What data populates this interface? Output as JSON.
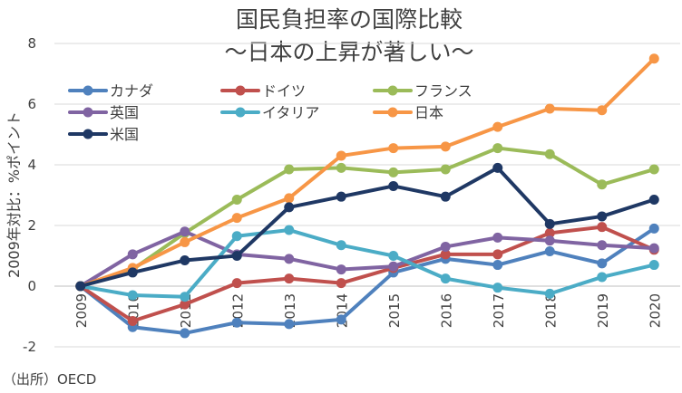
{
  "chart_data": {
    "type": "line",
    "title": "国民負担率の国際比較",
    "subtitle": "〜日本の上昇が著しい〜",
    "xlabel": "",
    "ylabel": "2009年対比：%ポイント",
    "ylim": [
      -2,
      8
    ],
    "yticks": [
      -2,
      0,
      2,
      4,
      6,
      8
    ],
    "grid": true,
    "legend_position": "top-left",
    "source": "（出所）OECD",
    "x": [
      "2009",
      "2010",
      "2011",
      "2012",
      "2013",
      "2014",
      "2015",
      "2016",
      "2017",
      "2018",
      "2019",
      "2020"
    ],
    "series": [
      {
        "name": "カナダ",
        "color": "#4f81bd",
        "values": [
          0,
          -1.35,
          -1.55,
          -1.2,
          -1.25,
          -1.1,
          0.45,
          0.9,
          0.7,
          1.15,
          0.75,
          1.9
        ]
      },
      {
        "name": "ドイツ",
        "color": "#c0504d",
        "values": [
          0,
          -1.15,
          -0.6,
          0.1,
          0.25,
          0.1,
          0.6,
          1.05,
          1.05,
          1.75,
          1.95,
          1.2
        ]
      },
      {
        "name": "フランス",
        "color": "#9bbb59",
        "values": [
          0,
          0.55,
          1.75,
          2.85,
          3.85,
          3.9,
          3.75,
          3.85,
          4.55,
          4.35,
          3.35,
          3.85
        ]
      },
      {
        "name": "英国",
        "color": "#8064a2",
        "values": [
          0,
          1.05,
          1.8,
          1.05,
          0.9,
          0.55,
          0.65,
          1.3,
          1.6,
          1.5,
          1.35,
          1.25
        ]
      },
      {
        "name": "イタリア",
        "color": "#4bacc6",
        "values": [
          0,
          -0.3,
          -0.35,
          1.65,
          1.85,
          1.35,
          1.0,
          0.25,
          -0.05,
          -0.25,
          0.3,
          0.7
        ]
      },
      {
        "name": "日本",
        "color": "#f79646",
        "values": [
          0,
          0.6,
          1.45,
          2.25,
          2.9,
          4.3,
          4.55,
          4.6,
          5.25,
          5.85,
          5.8,
          7.5
        ]
      },
      {
        "name": "米国",
        "color": "#1f3864",
        "values": [
          0,
          0.45,
          0.85,
          1.0,
          2.6,
          2.95,
          3.3,
          2.95,
          3.9,
          2.05,
          2.3,
          2.85
        ]
      }
    ]
  }
}
